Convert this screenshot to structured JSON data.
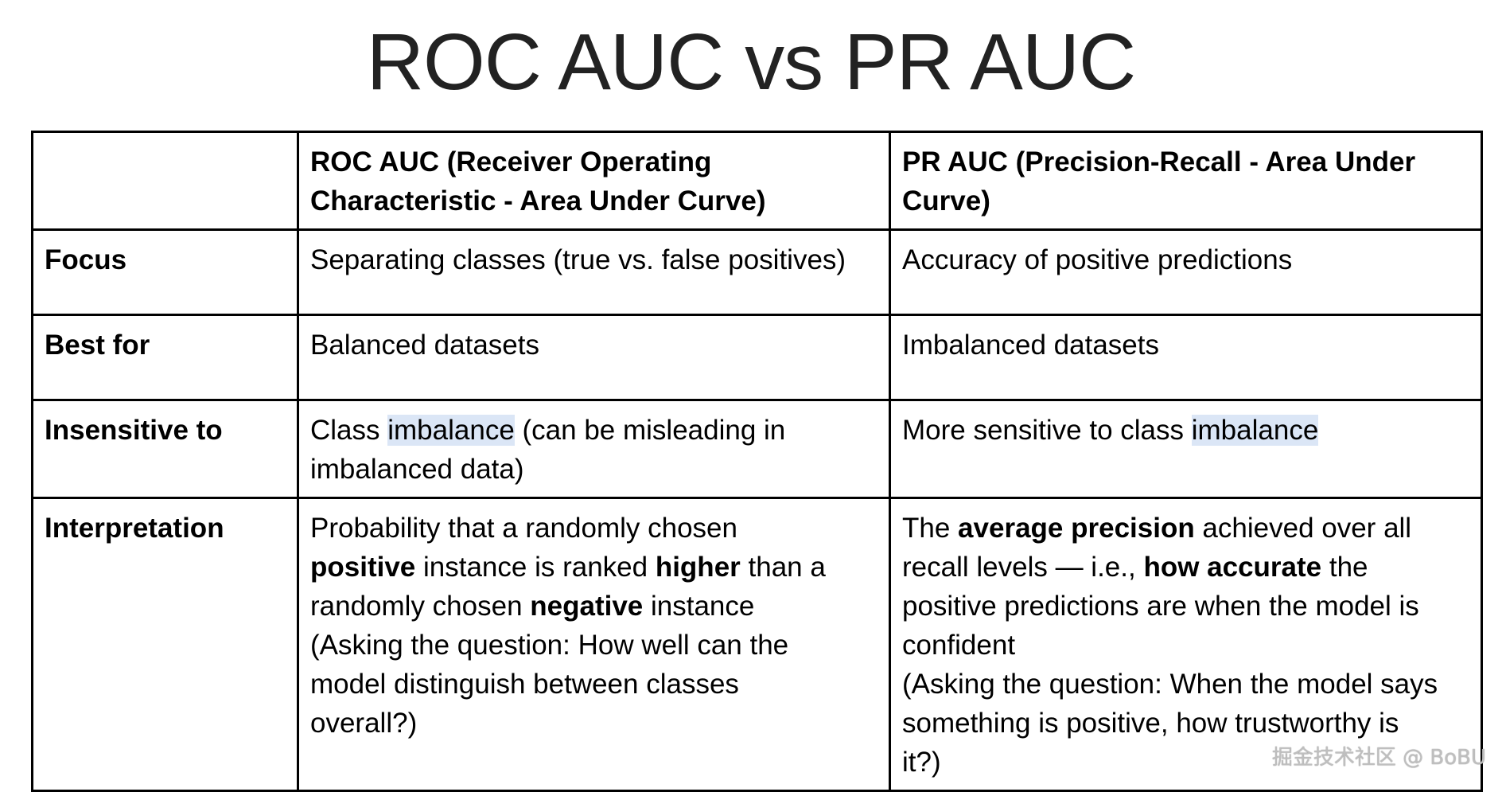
{
  "title": "ROC AUC vs PR AUC",
  "table": {
    "header": {
      "roc_line1": "ROC AUC (Receiver Operating",
      "roc_line2": "Characteristic - Area Under Curve)",
      "pr_line1": "PR AUC (Precision-Recall - Area Under",
      "pr_line2": "Curve)"
    },
    "focus": {
      "label": "Focus",
      "roc": "Separating classes (true vs. false positives)",
      "pr": "Accuracy of positive predictions"
    },
    "best_for": {
      "label": "Best for",
      "roc": "Balanced datasets",
      "pr": "Imbalanced datasets"
    },
    "insensitive_to": {
      "label": "Insensitive to",
      "roc_a": "Class ",
      "roc_highlight": "imbalance",
      "roc_b": " (can be misleading in",
      "roc_line2": "imbalanced data)",
      "pr_a": "More sensitive to class ",
      "pr_highlight": "imbalance"
    },
    "interpretation": {
      "label": "Interpretation",
      "roc": {
        "l1": "Probability that a randomly chosen",
        "l2_bold1": "positive",
        "l2_mid": " instance is ranked ",
        "l2_bold2": "higher",
        "l2_end": " than a",
        "l3_a": "randomly chosen ",
        "l3_bold": "negative",
        "l3_end": " instance",
        "l4": "(Asking the question: How well can the",
        "l5": "model distinguish between classes",
        "l6": "overall?)"
      },
      "pr": {
        "l1_a": "The ",
        "l1_bold": "average precision",
        "l1_end": " achieved over all",
        "l2_a": "recall levels — i.e., ",
        "l2_bold": "how accurate",
        "l2_end": " the",
        "l3": "positive predictions are when the model is",
        "l4": "confident",
        "l5": "(Asking the question: When the model says",
        "l6": "something is positive, how trustworthy is",
        "l7": "it?)"
      }
    }
  },
  "watermark": "掘金技术社区 @ BoBU"
}
